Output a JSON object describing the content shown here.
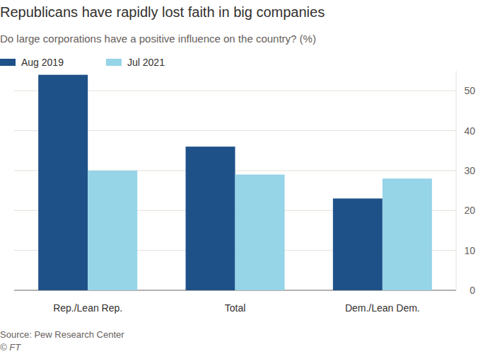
{
  "chart_data": {
    "type": "bar",
    "title": "Republicans have rapidly lost faith in big companies",
    "subtitle": "Do large corporations have a positive influence on the country? (%)",
    "source": "Source: Pew Research Center",
    "credit": "© FT",
    "categories": [
      "Rep./Lean Rep.",
      "Total",
      "Dem./Lean Dem."
    ],
    "series": [
      {
        "name": "Aug 2019",
        "color": "#1f5189",
        "values": [
          54,
          36,
          23
        ]
      },
      {
        "name": "Jul 2021",
        "color": "#96d4e7",
        "values": [
          30,
          29,
          28
        ]
      }
    ],
    "ylim": [
      0,
      55
    ],
    "yticks": [
      0,
      10,
      20,
      30,
      40,
      50
    ],
    "grid": true,
    "legend": "top-left"
  }
}
